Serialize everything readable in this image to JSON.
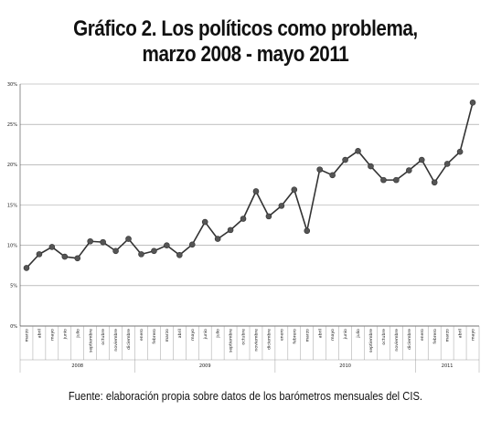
{
  "chart_data": {
    "type": "line",
    "title_lines": [
      "Gráfico 2. Los políticos como problema,",
      "marzo 2008 - mayo 2011"
    ],
    "source": "Fuente: elaboración propia sobre datos de los barómetros mensuales del CIS.",
    "y_ticks": [
      "0%",
      "5%",
      "10%",
      "15%",
      "20%",
      "25%",
      "30%"
    ],
    "ylim": [
      0,
      30
    ],
    "grid": true,
    "categories": [
      "marzo",
      "abril",
      "mayo",
      "junio",
      "julio",
      "septiembre",
      "octubre",
      "noviembre",
      "diciembre",
      "enero",
      "febrero",
      "marzo",
      "abril",
      "mayo",
      "junio",
      "julio",
      "septiembre",
      "octubre",
      "noviembre",
      "diciembre",
      "enero",
      "febrero",
      "marzo",
      "abril",
      "mayo",
      "junio",
      "julio",
      "septiembre",
      "octubre",
      "noviembre",
      "diciembre",
      "enero",
      "febrero",
      "marzo",
      "abril",
      "mayo"
    ],
    "years": [
      {
        "label": "2008",
        "count": 9
      },
      {
        "label": "2009",
        "count": 11
      },
      {
        "label": "2010",
        "count": 11
      },
      {
        "label": "2011",
        "count": 5
      }
    ],
    "series": [
      {
        "color": "#333333",
        "values": [
          7.2,
          8.9,
          9.8,
          8.6,
          8.4,
          10.5,
          10.4,
          9.3,
          10.8,
          8.9,
          9.3,
          10.0,
          8.8,
          10.1,
          12.9,
          10.8,
          11.9,
          13.3,
          16.7,
          13.6,
          14.9,
          16.9,
          11.8,
          19.4,
          18.7,
          20.6,
          21.7,
          19.8,
          18.1,
          18.1,
          19.3,
          20.6,
          17.8,
          20.1,
          21.6,
          27.7
        ]
      }
    ]
  }
}
